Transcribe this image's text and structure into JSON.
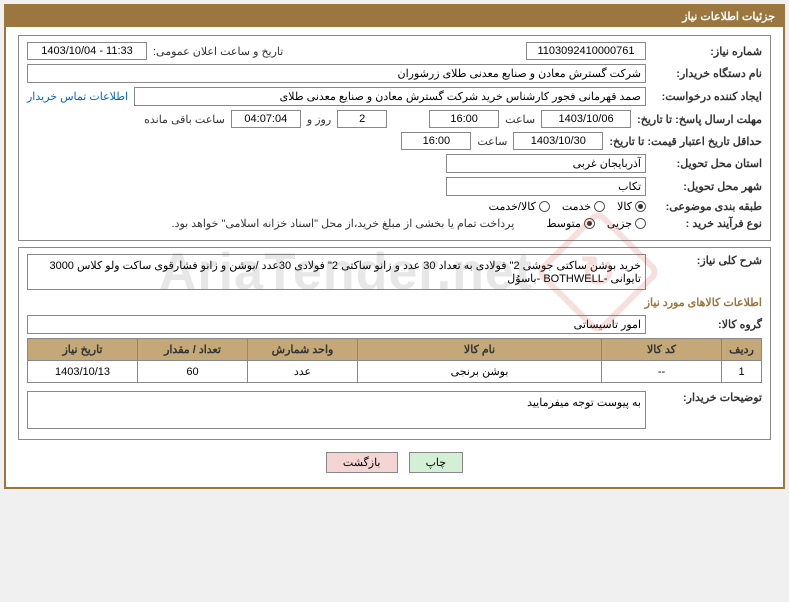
{
  "header": "جزئیات اطلاعات نیاز",
  "labels": {
    "needNo": "شماره نیاز:",
    "announceDateTime": "تاریخ و ساعت اعلان عمومی:",
    "buyerOrg": "نام دستگاه خریدار:",
    "requester": "ایجاد کننده درخواست:",
    "contactLink": "اطلاعات تماس خریدار",
    "deadlineSend": "مهلت ارسال پاسخ: تا تاریخ:",
    "hour": "ساعت",
    "dayAnd": "روز و",
    "remainHours": "ساعت باقی مانده",
    "minValidity": "حداقل تاریخ اعتبار قیمت: تا تاریخ:",
    "deliveryProvince": "استان محل تحویل:",
    "deliveryCity": "شهر محل تحویل:",
    "subjectClass": "طبقه بندی موضوعی:",
    "purchaseType": "نوع فرآیند خرید :",
    "generalDesc": "شرح کلی نیاز:",
    "goodsInfo": "اطلاعات کالاهای مورد نیاز",
    "goodsGroup": "گروه کالا:",
    "buyerRemarks": "توضیحات خریدار:"
  },
  "values": {
    "needNo": "1103092410000761",
    "announceDateTime": "1403/10/04 - 11:33",
    "buyerOrg": "شرکت گسترش معادن و صنایع معدنی طلای زرشوران",
    "requester": "صمد قهرمانی فجور کارشناس خرید شرکت گسترش معادن و صنایع معدنی طلای",
    "deadlineDate": "1403/10/06",
    "deadlineHour": "16:00",
    "remainDays": "2",
    "remainTime": "04:07:04",
    "validityDate": "1403/10/30",
    "validityHour": "16:00",
    "province": "آذربایجان غربی",
    "city": "تکاب",
    "generalDesc": "خرید بوشن ساکتی جوشی 2\" فولادی به تعداد 30 عدد و زانو ساکتی 2\" فولادی 30عدد /بوشن و زانو فشارقوی ساکت ولو کلاس 3000 تایوانی -BOTHWELL -باسوُل",
    "goodsGroup": "امور تاسیساتی",
    "remarks": "به پیوست توجه میفرمایید",
    "paymentNote": "پرداخت تمام یا بخشی از مبلغ خرید،از محل \"اسناد خزانه اسلامی\" خواهد بود."
  },
  "radios": {
    "subject": [
      {
        "label": "کالا",
        "checked": true
      },
      {
        "label": "خدمت",
        "checked": false
      },
      {
        "label": "کالا/خدمت",
        "checked": false
      }
    ],
    "purchase": [
      {
        "label": "جزیی",
        "checked": false
      },
      {
        "label": "متوسط",
        "checked": true
      }
    ]
  },
  "table": {
    "headers": {
      "radif": "ردیف",
      "code": "کد کالا",
      "name": "نام کالا",
      "unit": "واحد شمارش",
      "qty": "تعداد / مقدار",
      "date": "تاریخ نیاز"
    },
    "rows": [
      {
        "radif": "1",
        "code": "--",
        "name": "بوشن برنجی",
        "unit": "عدد",
        "qty": "60",
        "date": "1403/10/13"
      }
    ]
  },
  "buttons": {
    "print": "چاپ",
    "back": "بازگشت"
  },
  "watermark": "AriaTender.net"
}
